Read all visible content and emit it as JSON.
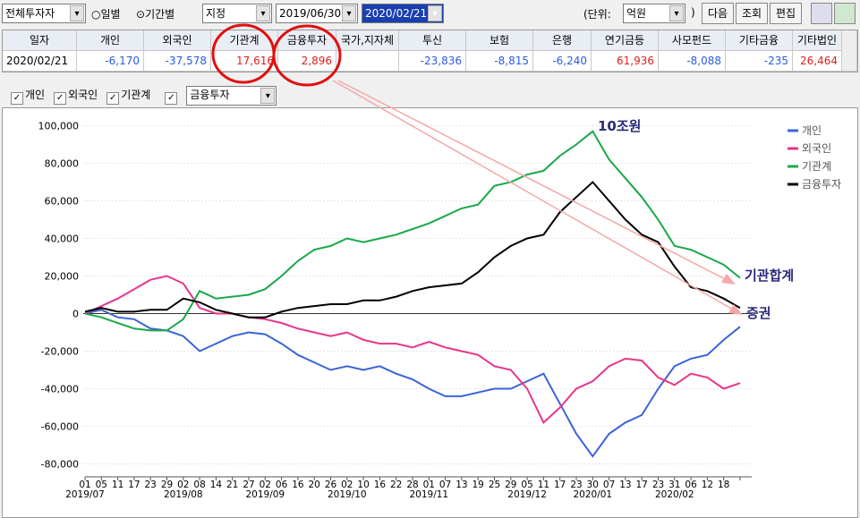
{
  "toolbar": {
    "investor_select": "전체투자자",
    "radio_daily": "일별",
    "radio_period": "기간별",
    "mode_select": "지정",
    "start_date": "2019/06/30",
    "end_date": "2020/02/21",
    "unit_open": "(단위:",
    "unit_select": "억원",
    "unit_close": ")",
    "buttons": [
      "다음",
      "조회",
      "편집"
    ]
  },
  "table": {
    "headers": [
      "일자",
      "개인",
      "외국인",
      "기관계",
      "금융투자",
      "국가,지자체",
      "투신",
      "보험",
      "은행",
      "연기금등",
      "사모펀드",
      "기타금융",
      "기타법인"
    ],
    "rows": [
      [
        "2020/02/21",
        "-6,170",
        "-37,578",
        "17,616",
        "2,896",
        null,
        "-23,836",
        "-8,815",
        "-6,240",
        "61,936",
        "-8,088",
        "-235",
        "26,464"
      ]
    ]
  },
  "checkboxes": [
    "개인",
    "외국인",
    "기관계"
  ],
  "series_select": "금융투자",
  "chart_data": {
    "type": "line",
    "categories": [
      "01",
      "05",
      "11",
      "17",
      "23",
      "29",
      "02",
      "08",
      "14",
      "21",
      "27",
      "02",
      "06",
      "16",
      "20",
      "26",
      "02",
      "10",
      "16",
      "22",
      "28",
      "01",
      "07",
      "13",
      "19",
      "25",
      "29",
      "05",
      "11",
      "17",
      "23",
      "30",
      "07",
      "13",
      "17",
      "23",
      "31",
      "06",
      "12",
      "18",
      null
    ],
    "x_groups": [
      {
        "label": "2019/07",
        "index": 0
      },
      {
        "label": "2019/08",
        "index": 6
      },
      {
        "label": "2019/09",
        "index": 11
      },
      {
        "label": "2019/10",
        "index": 16
      },
      {
        "label": "2019/11",
        "index": 21
      },
      {
        "label": "2019/12",
        "index": 27
      },
      {
        "label": "2020/01",
        "index": 31
      },
      {
        "label": "2020/02",
        "index": 36
      }
    ],
    "series": [
      {
        "name": "개인",
        "color": "#3a63d8",
        "values": [
          0,
          2000,
          -2000,
          -3000,
          -8000,
          -9000,
          -12000,
          -20000,
          -16000,
          -12000,
          -10000,
          -11000,
          -16000,
          -22000,
          -26000,
          -30000,
          -28000,
          -30000,
          -28000,
          -32000,
          -35000,
          -40000,
          -44000,
          -44000,
          -42000,
          -40000,
          -40000,
          -36000,
          -32000,
          -48000,
          -64000,
          -76000,
          -64000,
          -58000,
          -54000,
          -40000,
          -28000,
          -24000,
          -22000,
          -14000,
          -7000
        ]
      },
      {
        "name": "외국인",
        "color": "#e8358a",
        "values": [
          0,
          4000,
          8000,
          13000,
          18000,
          20000,
          16000,
          3000,
          0,
          0,
          -2000,
          -3000,
          -5000,
          -8000,
          -10000,
          -12000,
          -10000,
          -14000,
          -16000,
          -16000,
          -18000,
          -15000,
          -18000,
          -20000,
          -22000,
          -28000,
          -30000,
          -40000,
          -58000,
          -50000,
          -40000,
          -36000,
          -28000,
          -24000,
          -25000,
          -34000,
          -38000,
          -32000,
          -34000,
          -40000,
          -37000
        ]
      },
      {
        "name": "기관계",
        "color": "#1aa84a",
        "values": [
          0,
          -2000,
          -5000,
          -8000,
          -9000,
          -9000,
          -3000,
          12000,
          8000,
          9000,
          10000,
          13000,
          20000,
          28000,
          34000,
          36000,
          40000,
          38000,
          40000,
          42000,
          45000,
          48000,
          52000,
          56000,
          58000,
          68000,
          70000,
          74000,
          76000,
          84000,
          90000,
          97000,
          82000,
          72000,
          62000,
          50000,
          36000,
          34000,
          30000,
          26000,
          19000
        ]
      },
      {
        "name": "금융투자",
        "color": "#000000",
        "values": [
          1000,
          3000,
          1000,
          1000,
          2000,
          2000,
          8000,
          6000,
          2000,
          0,
          -2000,
          -2000,
          1000,
          3000,
          4000,
          5000,
          5000,
          7000,
          7000,
          9000,
          12000,
          14000,
          15000,
          16000,
          22000,
          30000,
          36000,
          40000,
          42000,
          54000,
          62000,
          70000,
          60000,
          50000,
          42000,
          38000,
          25000,
          14000,
          12000,
          8000,
          3000
        ]
      }
    ],
    "ylim": [
      -85000,
      105000
    ],
    "yticks": [
      {
        "value": -80000,
        "label": "-80,000"
      },
      {
        "value": -60000,
        "label": "-60,000"
      },
      {
        "value": -40000,
        "label": "-40,000"
      },
      {
        "value": -20000,
        "label": "-20,000"
      },
      0,
      {
        "value": 20000,
        "label": "20,000"
      },
      {
        "value": 40000,
        "label": "40,000"
      },
      {
        "value": 60000,
        "label": "60,000"
      },
      {
        "value": 80000,
        "label": "80,000"
      },
      {
        "value": 100000,
        "label": "100,000"
      }
    ],
    "grid": true,
    "legend": "top-right",
    "annotations": [
      {
        "text": "10조원"
      },
      {
        "text": "기관합계"
      },
      {
        "text": "증권"
      }
    ]
  }
}
